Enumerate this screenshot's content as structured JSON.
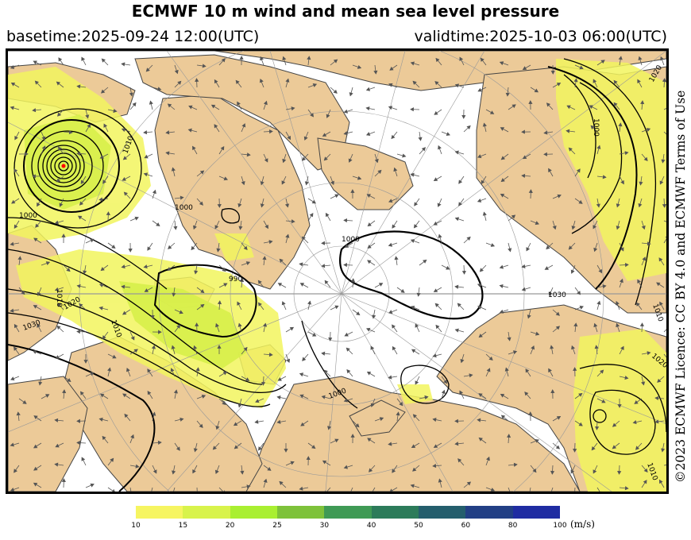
{
  "header": {
    "title": "ECMWF 10 m wind and mean sea level pressure",
    "basetime": "basetime:2025-09-24 12:00(UTC)",
    "validtime": "validtime:2025-10-03 06:00(UTC)"
  },
  "licence": "©2023 ECMWF Licence: CC BY 4.0 and ECMWF Terms of Use",
  "map": {
    "isobar_labels": [
      "1010",
      "990",
      "1000",
      "1010",
      "1020",
      "1030",
      "1000",
      "1000",
      "1010",
      "1020",
      "1000",
      "1010",
      "1020",
      "1010",
      "1030",
      "1000"
    ],
    "colors": {
      "land": "#ecca98",
      "sea": "#ffffff",
      "wind_10_15": "#f2f55e",
      "wind_15_20": "#d7f04a",
      "isobar": "#000000",
      "coast": "#444444"
    }
  },
  "colorbar": {
    "ticks": [
      "10",
      "15",
      "20",
      "25",
      "30",
      "40",
      "50",
      "60",
      "80",
      "100"
    ],
    "colors": [
      "#f6f561",
      "#d8f34b",
      "#a9ef31",
      "#7ec23a",
      "#3f9a55",
      "#2c7b5a",
      "#245e6d",
      "#223f85",
      "#1f2ca2",
      "#1f2ca2"
    ],
    "unit": "(m/s)"
  }
}
